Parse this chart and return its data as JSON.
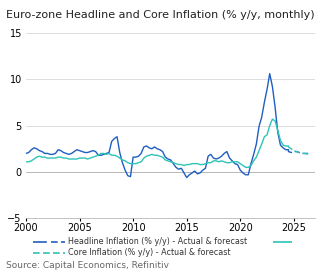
{
  "title": "Euro-zone Headline and Core Inflation (% y/y, monthly)",
  "source": "Source: Capital Economics, Refinitiv",
  "ylim": [
    -5,
    15
  ],
  "yticks": [
    -5,
    0,
    5,
    10,
    15
  ],
  "xlim": [
    2000,
    2027
  ],
  "xticks": [
    2000,
    2005,
    2010,
    2015,
    2020,
    2025
  ],
  "headline_color": "#1f5fc2",
  "core_color": "#2ec4b6",
  "legend_entries": [
    "Headline Inflation (% y/y) - Actual & forecast",
    "Core Inflation (% y/y) - Actual & forecast"
  ],
  "title_fontsize": 8.0,
  "axis_fontsize": 7,
  "source_fontsize": 6.5,
  "headline_actual": {
    "years": [
      2000,
      2000.25,
      2000.5,
      2000.75,
      2001,
      2001.25,
      2001.5,
      2001.75,
      2002,
      2002.25,
      2002.5,
      2002.75,
      2003,
      2003.25,
      2003.5,
      2003.75,
      2004,
      2004.25,
      2004.5,
      2004.75,
      2005,
      2005.25,
      2005.5,
      2005.75,
      2006,
      2006.25,
      2006.5,
      2006.75,
      2007,
      2007.25,
      2007.5,
      2007.75,
      2008,
      2008.25,
      2008.5,
      2008.75,
      2009,
      2009.25,
      2009.5,
      2009.75,
      2010,
      2010.25,
      2010.5,
      2010.75,
      2011,
      2011.25,
      2011.5,
      2011.75,
      2012,
      2012.25,
      2012.5,
      2012.75,
      2013,
      2013.25,
      2013.5,
      2013.75,
      2014,
      2014.25,
      2014.5,
      2014.75,
      2015,
      2015.25,
      2015.5,
      2015.75,
      2016,
      2016.25,
      2016.5,
      2016.75,
      2017,
      2017.25,
      2017.5,
      2017.75,
      2018,
      2018.25,
      2018.5,
      2018.75,
      2019,
      2019.25,
      2019.5,
      2019.75,
      2020,
      2020.25,
      2020.5,
      2020.75,
      2021,
      2021.25,
      2021.5,
      2021.75,
      2022,
      2022.25,
      2022.5,
      2022.75,
      2023,
      2023.25,
      2023.5,
      2023.75,
      2024,
      2024.25,
      2024.5
    ],
    "values": [
      2.0,
      2.1,
      2.4,
      2.6,
      2.5,
      2.3,
      2.2,
      2.0,
      2.0,
      1.9,
      1.9,
      2.0,
      2.4,
      2.3,
      2.1,
      2.0,
      1.9,
      2.0,
      2.2,
      2.4,
      2.3,
      2.2,
      2.1,
      2.1,
      2.2,
      2.3,
      2.2,
      1.8,
      1.8,
      1.9,
      2.0,
      2.1,
      3.3,
      3.6,
      3.8,
      2.1,
      1.0,
      0.2,
      -0.4,
      -0.5,
      1.6,
      1.6,
      1.7,
      2.0,
      2.7,
      2.8,
      2.6,
      2.5,
      2.7,
      2.5,
      2.4,
      2.2,
      1.6,
      1.4,
      1.3,
      0.9,
      0.5,
      0.3,
      0.4,
      -0.1,
      -0.6,
      -0.3,
      -0.1,
      0.1,
      -0.2,
      -0.1,
      0.2,
      0.4,
      1.7,
      1.9,
      1.5,
      1.4,
      1.5,
      1.7,
      2.0,
      2.2,
      1.5,
      1.2,
      0.9,
      0.8,
      0.2,
      -0.1,
      -0.3,
      -0.3,
      0.9,
      1.9,
      3.0,
      4.9,
      5.9,
      7.5,
      8.9,
      10.6,
      9.2,
      7.0,
      4.3,
      2.9,
      2.6,
      2.4,
      2.4
    ]
  },
  "headline_forecast": {
    "years": [
      2024.5,
      2024.75,
      2025,
      2025.25,
      2025.5,
      2025.75,
      2026,
      2026.5
    ],
    "values": [
      2.2,
      2.1,
      2.2,
      2.2,
      2.1,
      2.0,
      2.0,
      2.0
    ]
  },
  "core_actual": {
    "years": [
      2000,
      2000.25,
      2000.5,
      2000.75,
      2001,
      2001.25,
      2001.5,
      2001.75,
      2002,
      2002.25,
      2002.5,
      2002.75,
      2003,
      2003.25,
      2003.5,
      2003.75,
      2004,
      2004.25,
      2004.5,
      2004.75,
      2005,
      2005.25,
      2005.5,
      2005.75,
      2006,
      2006.25,
      2006.5,
      2006.75,
      2007,
      2007.25,
      2007.5,
      2007.75,
      2008,
      2008.25,
      2008.5,
      2008.75,
      2009,
      2009.25,
      2009.5,
      2009.75,
      2010,
      2010.25,
      2010.5,
      2010.75,
      2011,
      2011.25,
      2011.5,
      2011.75,
      2012,
      2012.25,
      2012.5,
      2012.75,
      2013,
      2013.25,
      2013.5,
      2013.75,
      2014,
      2014.25,
      2014.5,
      2014.75,
      2015,
      2015.25,
      2015.5,
      2015.75,
      2016,
      2016.25,
      2016.5,
      2016.75,
      2017,
      2017.25,
      2017.5,
      2017.75,
      2018,
      2018.25,
      2018.5,
      2018.75,
      2019,
      2019.25,
      2019.5,
      2019.75,
      2020,
      2020.25,
      2020.5,
      2020.75,
      2021,
      2021.25,
      2021.5,
      2021.75,
      2022,
      2022.25,
      2022.5,
      2022.75,
      2023,
      2023.25,
      2023.5,
      2023.75,
      2024,
      2024.25,
      2024.5
    ],
    "values": [
      1.1,
      1.1,
      1.2,
      1.4,
      1.6,
      1.7,
      1.6,
      1.6,
      1.5,
      1.5,
      1.5,
      1.5,
      1.6,
      1.6,
      1.5,
      1.5,
      1.4,
      1.4,
      1.4,
      1.4,
      1.5,
      1.5,
      1.5,
      1.4,
      1.5,
      1.6,
      1.7,
      1.8,
      2.0,
      2.0,
      1.9,
      2.0,
      1.8,
      1.8,
      1.7,
      1.5,
      1.3,
      1.2,
      1.0,
      0.9,
      0.9,
      0.9,
      1.0,
      1.1,
      1.5,
      1.7,
      1.8,
      1.9,
      1.8,
      1.8,
      1.7,
      1.6,
      1.3,
      1.2,
      1.1,
      1.0,
      0.9,
      0.8,
      0.8,
      0.7,
      0.8,
      0.8,
      0.9,
      0.9,
      0.9,
      0.8,
      0.8,
      0.9,
      1.0,
      1.0,
      1.2,
      1.2,
      1.1,
      1.2,
      1.1,
      1.0,
      1.0,
      1.1,
      1.1,
      1.1,
      0.9,
      0.7,
      0.5,
      0.5,
      0.7,
      1.2,
      1.6,
      2.3,
      3.0,
      3.8,
      4.0,
      5.0,
      5.7,
      5.5,
      4.5,
      3.4,
      2.9,
      2.8,
      2.8
    ]
  },
  "core_forecast": {
    "years": [
      2024.5,
      2024.75,
      2025,
      2025.25,
      2025.5,
      2025.75,
      2026,
      2026.5
    ],
    "values": [
      2.7,
      2.5,
      2.3,
      2.2,
      2.1,
      2.0,
      2.0,
      1.9
    ]
  }
}
